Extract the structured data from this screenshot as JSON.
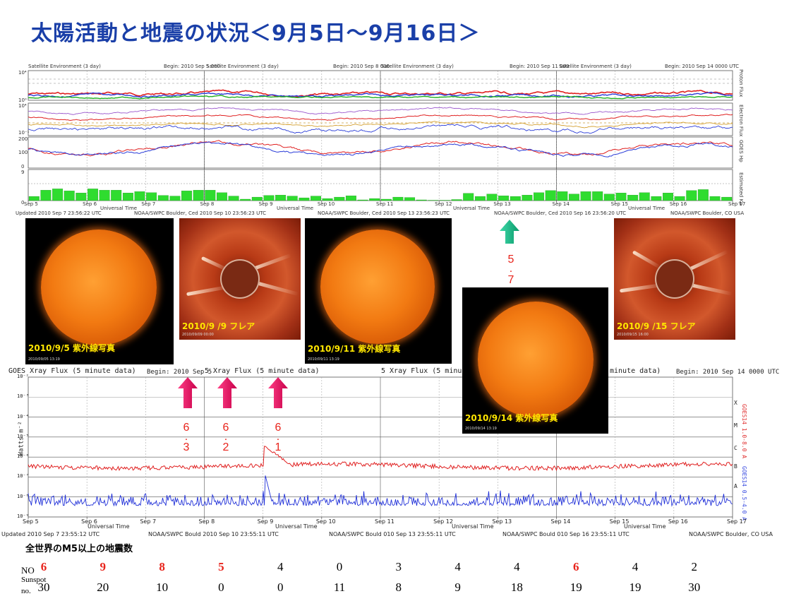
{
  "title": "太陽活動と地震の状況＜9月5日～9月16日＞",
  "top_panel": {
    "headers": [
      {
        "left": "Satellite Environment (3 day)",
        "right": "Begin: 2010 Sep 5 000"
      },
      {
        "left": "Satellite Environment (3 day)",
        "right": "Begin: 2010 Sep 8 000"
      },
      {
        "left": "Satellite Environment (3 day)",
        "right": "Begin: 2010 Sep 11 000"
      },
      {
        "left": "Satellite Environment (3 day)",
        "right": "Begin: 2010 Sep 14 0000 UTC"
      }
    ],
    "row_labels": [
      "Proton Flux",
      "Electron Flux",
      "GOES Hp",
      "Estimated Kp"
    ],
    "y_labels": [
      "10⁴",
      "10⁰",
      "10⁴",
      "10⁻¹",
      "200",
      "100",
      "0",
      "9",
      "0"
    ],
    "footers": [
      "Updated 2010 Sep 7 23:56:22 UTC",
      "NOAA/SWPC Boulder, Ced 2010 Sep 10 23:56:23 UTC",
      "NOAA/SWPC Boulder, Ced 2010 Sep 13 23:56:23 UTC",
      "NOAA/SWPC Boulder, Ced 2010 Sep 16 23:56:20 UTC",
      "NOAA/SWPC Boulder, CO USA"
    ],
    "universal_time": "Universal Time",
    "day_ticks": [
      "Sep 5",
      "Sep 6",
      "Sep 7",
      "Sep 8",
      "Sep 9",
      "Sep 10",
      "Sep 11",
      "Sep 12",
      "Sep 13",
      "Sep 14",
      "Sep 15",
      "Sep 16",
      "Sep 17"
    ]
  },
  "xray": {
    "title_left": "GOES Xray Flux (5 minute data)",
    "begin_1": "Begin: 2010 Sep 5",
    "title_mid1": "5 Xray Flux (5 minute data)",
    "title_mid2": "5 Xray Flux (5 minute data)",
    "title_right": "minute data)",
    "begin_4": "Begin: 2010 Sep 14 0000 UTC",
    "ylabel": "Watts m⁻²",
    "class_labels": [
      "X",
      "M",
      "C",
      "B",
      "A"
    ],
    "right_label_red": "GOES14 1.0-8.0 A",
    "right_label_blue": "GOES14 0.5-4.0 A",
    "footers": [
      "Updated 2010 Sep 7 23:55:12 UTC",
      "NOAA/SWPC Bould 2010 Sep 10 23:55:11 UTC",
      "NOAA/SWPC Bould 010 Sep 13 23:55:11 UTC",
      "NOAA/SWPC Bould 010 Sep 16 23:55:11 UTC",
      "NOAA/SWPC Boulder, CO USA"
    ],
    "universal_time": "Universal Time"
  },
  "photos": {
    "p1": {
      "caption": "2010/9/5 紫外線写真",
      "stamp": "2010/09/05 13:19"
    },
    "p2": {
      "caption": "2010/9 /9 フレア",
      "stamp": "2010/09/09 00:00"
    },
    "p3": {
      "caption": "2010/9/11 紫外線写真",
      "stamp": "2010/09/11 13:19"
    },
    "p4": {
      "caption": "2010/9/14 紫外線写真",
      "stamp": "2010/09/14 13:19"
    },
    "p5": {
      "caption": "2010/9 /15 フレア",
      "stamp": "2010/09/15 16:00"
    }
  },
  "arrow_magnitudes": [
    {
      "top": "6",
      "dot": ".",
      "bottom": "3"
    },
    {
      "top": "6",
      "dot": ".",
      "bottom": "2"
    },
    {
      "top": "6",
      "dot": ".",
      "bottom": "1"
    },
    {
      "top": "5",
      "dot": ".",
      "bottom": "7"
    }
  ],
  "earthquakes": {
    "title": "全世界のM5以上の地震数",
    "no_label": "NO",
    "sunspot_label_1": "Sunspot",
    "sunspot_label_2": "no."
  },
  "chart_data": {
    "type": "table",
    "title": "全世界のM5以上の地震数",
    "days": [
      "Sep 5",
      "Sep 6",
      "Sep 7",
      "Sep 8",
      "Sep 9",
      "Sep 10",
      "Sep 11",
      "Sep 12",
      "Sep 13",
      "Sep 14",
      "Sep 15",
      "Sep 16"
    ],
    "earthquake_counts": [
      6,
      9,
      8,
      5,
      4,
      0,
      3,
      4,
      4,
      6,
      4,
      2
    ],
    "highlighted": [
      true,
      true,
      true,
      true,
      false,
      false,
      false,
      false,
      false,
      true,
      false,
      false
    ],
    "highlight_color": "#e8241c",
    "sunspot_numbers": [
      30,
      20,
      10,
      0,
      0,
      11,
      8,
      9,
      18,
      19,
      19,
      30
    ],
    "kp_index": [
      1.2,
      3,
      3.4,
      2.8,
      2.2,
      3.4,
      3,
      3,
      2.2,
      2.6,
      2.3,
      1.5,
      1.3,
      2.8,
      3,
      3,
      2.3,
      1.3,
      0.4,
      1,
      1.5,
      1.6,
      1.3,
      0.8,
      1.3,
      0.6,
      1,
      1.4,
      0.2,
      0.6,
      0.4,
      1,
      0.9,
      0.2,
      0.1,
      0.1,
      0.3,
      2.1,
      1.2,
      1.9,
      1.4,
      1.2,
      1.6,
      2.3,
      2.9,
      2.6,
      1.9,
      2.6,
      2.6,
      1.9,
      2.2,
      1.6,
      2.3,
      1.2,
      2.2,
      1.2,
      2.9,
      3.2,
      1.2,
      1
    ],
    "kp_ylim": [
      0,
      9
    ],
    "xray_events": [
      {
        "day": "Sep 9",
        "flare_class": "C"
      }
    ],
    "xray_ylim_log": [
      -9,
      -2
    ]
  }
}
